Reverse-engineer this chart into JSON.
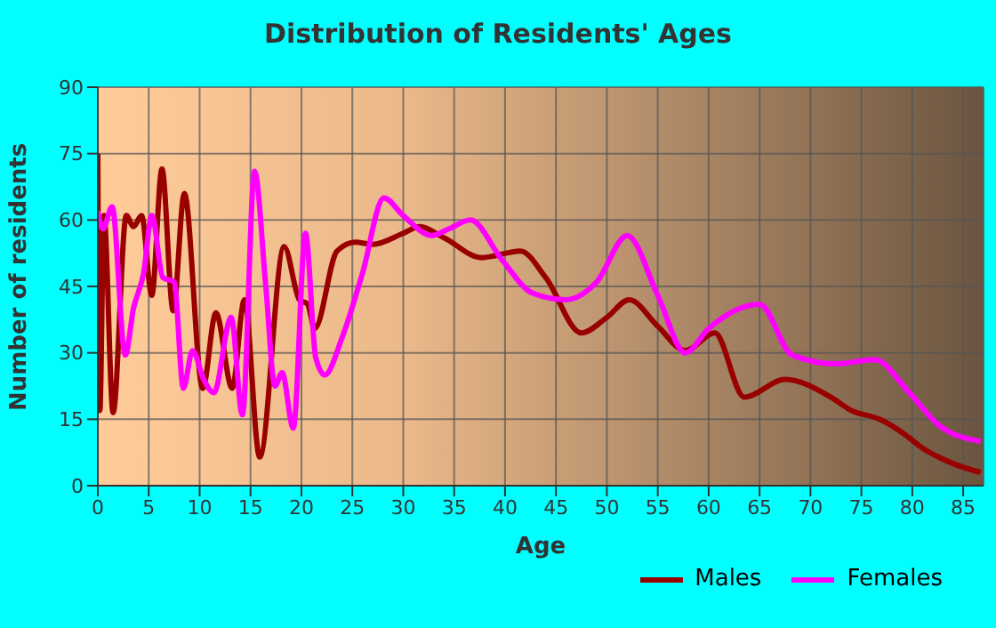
{
  "chart_data": {
    "type": "line",
    "title": "Distribution of Residents' Ages",
    "xlabel": "Age",
    "ylabel": "Number of residents",
    "xlim": [
      0,
      87
    ],
    "xticks": [
      0,
      5,
      10,
      15,
      20,
      25,
      30,
      35,
      40,
      45,
      50,
      55,
      60,
      65,
      70,
      75,
      80,
      85
    ],
    "ylim": [
      0,
      90
    ],
    "yticks": [
      0,
      15,
      30,
      45,
      60,
      75,
      90
    ],
    "grid": true,
    "legend": "bottom right",
    "marker": "none",
    "line_style": "solid",
    "series": [
      {
        "name": "Males",
        "color": "#990000",
        "x": [
          0,
          0.2,
          0.6,
          1.5,
          2.8,
          3.5,
          4.3,
          5.3,
          6.3,
          7.4,
          8.5,
          10.3,
          11.6,
          13.2,
          14.4,
          15.9,
          18.3,
          19.8,
          20.6,
          21.3,
          23.5,
          25.3,
          27,
          30,
          31.6,
          34,
          37.7,
          41.5,
          44,
          47.5,
          50,
          52.2,
          55,
          57.7,
          60.6,
          63.5,
          67.5,
          72,
          74,
          76.8,
          79,
          81,
          84,
          86.7
        ],
        "values": [
          75,
          17,
          61,
          16.5,
          61,
          58.5,
          61,
          43,
          71.5,
          39.5,
          66,
          22,
          39,
          22,
          42,
          6.5,
          54,
          42,
          41,
          35.5,
          53,
          55,
          54.5,
          57,
          58.5,
          56,
          51.5,
          53,
          47,
          34.5,
          38,
          42,
          36,
          30.5,
          34.5,
          20,
          24,
          20,
          17,
          15,
          12,
          8.5,
          5,
          3
        ]
      },
      {
        "name": "Females",
        "color": "#ff00ff",
        "x": [
          0,
          0.5,
          1.4,
          2.7,
          3.5,
          4.5,
          5.3,
          6.4,
          7.5,
          8.4,
          9.3,
          10.4,
          11.4,
          13.1,
          14.2,
          15.4,
          16.5,
          17.4,
          18.1,
          19.2,
          20.4,
          21.4,
          22.3,
          24,
          26,
          28.1,
          30,
          32.8,
          34.5,
          36.6,
          39.7,
          42.7,
          46,
          49,
          52,
          55,
          57.7,
          60,
          65,
          68.2,
          72.5,
          76.3,
          79.7,
          82.7,
          86.7
        ],
        "values": [
          62,
          58,
          63,
          29.5,
          40,
          48,
          61,
          47,
          46,
          22,
          30.5,
          24,
          21,
          38,
          16,
          71,
          45,
          22.5,
          25.5,
          13,
          57,
          29,
          25,
          33.5,
          48,
          65,
          61,
          56.5,
          58,
          60,
          51,
          43.5,
          42,
          46,
          56.5,
          43,
          30,
          35.5,
          41,
          29.5,
          27.5,
          28.5,
          21,
          13.5,
          10
        ]
      }
    ]
  }
}
